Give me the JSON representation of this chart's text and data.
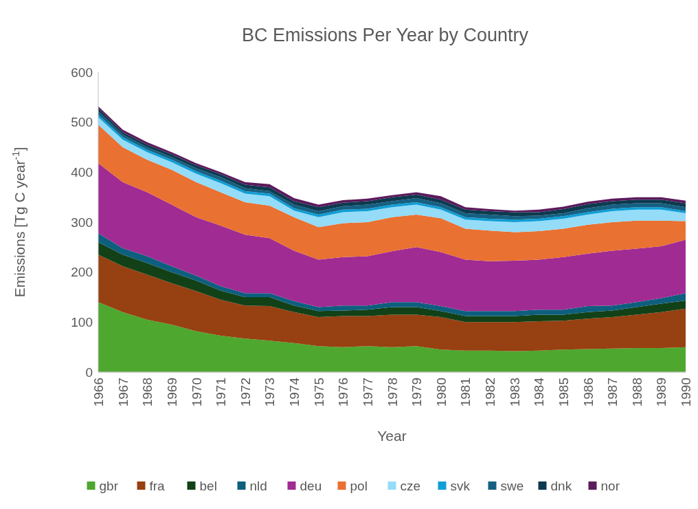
{
  "chart_data": {
    "type": "area",
    "stacked": true,
    "title": "BC Emissions Per Year by Country",
    "xlabel": "Year",
    "ylabel": "Emissions [Tg C year$^{-1}$]",
    "categories": [
      "1966",
      "1967",
      "1968",
      "1969",
      "1970",
      "1971",
      "1972",
      "1973",
      "1974",
      "1975",
      "1976",
      "1977",
      "1978",
      "1979",
      "1980",
      "1981",
      "1982",
      "1983",
      "1984",
      "1985",
      "1986",
      "1987",
      "1988",
      "1989",
      "1990"
    ],
    "ylim": [
      0,
      600
    ],
    "yticks": [
      0,
      100,
      200,
      300,
      400,
      500,
      600
    ],
    "grid": false,
    "legend": "bottom",
    "series": [
      {
        "name": "gbr",
        "color": "#4ea72e",
        "values": [
          140,
          120,
          105,
          95,
          82,
          73,
          67,
          63,
          58,
          52,
          50,
          52,
          50,
          52,
          45,
          43,
          43,
          42,
          43,
          45,
          46,
          47,
          48,
          48,
          50
        ]
      },
      {
        "name": "fra",
        "color": "#974012",
        "values": [
          95,
          92,
          90,
          83,
          80,
          72,
          66,
          69,
          62,
          58,
          62,
          60,
          65,
          63,
          65,
          57,
          57,
          58,
          59,
          58,
          61,
          63,
          67,
          72,
          77
        ]
      },
      {
        "name": "bel",
        "color": "#124117",
        "values": [
          25,
          23,
          23,
          22,
          21,
          18,
          17,
          18,
          13,
          12,
          11,
          13,
          15,
          15,
          12,
          12,
          12,
          12,
          13,
          12,
          13,
          13,
          15,
          17,
          16
        ]
      },
      {
        "name": "nld",
        "color": "#0e5f7e",
        "values": [
          18,
          13,
          14,
          12,
          10,
          9,
          8,
          8,
          9,
          8,
          10,
          8,
          10,
          10,
          10,
          10,
          10,
          10,
          10,
          10,
          12,
          10,
          10,
          11,
          15
        ]
      },
      {
        "name": "deu",
        "color": "#a02b93",
        "values": [
          140,
          132,
          128,
          123,
          117,
          121,
          117,
          110,
          101,
          95,
          97,
          99,
          102,
          110,
          108,
          103,
          100,
          101,
          100,
          105,
          105,
          110,
          107,
          104,
          107
        ]
      },
      {
        "name": "pol",
        "color": "#e97132",
        "values": [
          77,
          70,
          65,
          70,
          70,
          67,
          65,
          65,
          67,
          65,
          68,
          68,
          68,
          65,
          68,
          62,
          61,
          57,
          57,
          57,
          58,
          57,
          56,
          51,
          37
        ]
      },
      {
        "name": "cze",
        "color": "#94dcf8",
        "values": [
          15,
          15,
          15,
          15,
          17,
          18,
          17,
          19,
          13,
          20,
          22,
          22,
          20,
          20,
          17,
          18,
          19,
          20,
          20,
          20,
          20,
          22,
          22,
          22,
          16
        ]
      },
      {
        "name": "svk",
        "color": "#0f9ed5",
        "values": [
          5,
          5,
          5,
          5,
          5,
          5,
          5,
          5,
          5,
          5,
          5,
          5,
          5,
          5,
          5,
          5,
          5,
          5,
          5,
          5,
          5,
          5,
          5,
          5,
          4
        ]
      },
      {
        "name": "swe",
        "color": "#156082",
        "values": [
          7,
          5,
          5,
          5,
          6,
          7,
          6,
          5,
          7,
          7,
          7,
          8,
          7,
          8,
          8,
          8,
          8,
          7,
          6,
          6,
          8,
          8,
          8,
          8,
          8
        ]
      },
      {
        "name": "dnk",
        "color": "#0c3a4f",
        "values": [
          6,
          5,
          5,
          6,
          6,
          6,
          7,
          8,
          7,
          8,
          7,
          7,
          8,
          7,
          7,
          7,
          7,
          8,
          7,
          8,
          8,
          7,
          7,
          7,
          8
        ]
      },
      {
        "name": "nor",
        "color": "#5c1a5c",
        "values": [
          4,
          5,
          5,
          4,
          4,
          4,
          5,
          6,
          6,
          5,
          5,
          5,
          4,
          5,
          7,
          5,
          4,
          3,
          5,
          5,
          5,
          5,
          5,
          5,
          5
        ]
      }
    ]
  }
}
